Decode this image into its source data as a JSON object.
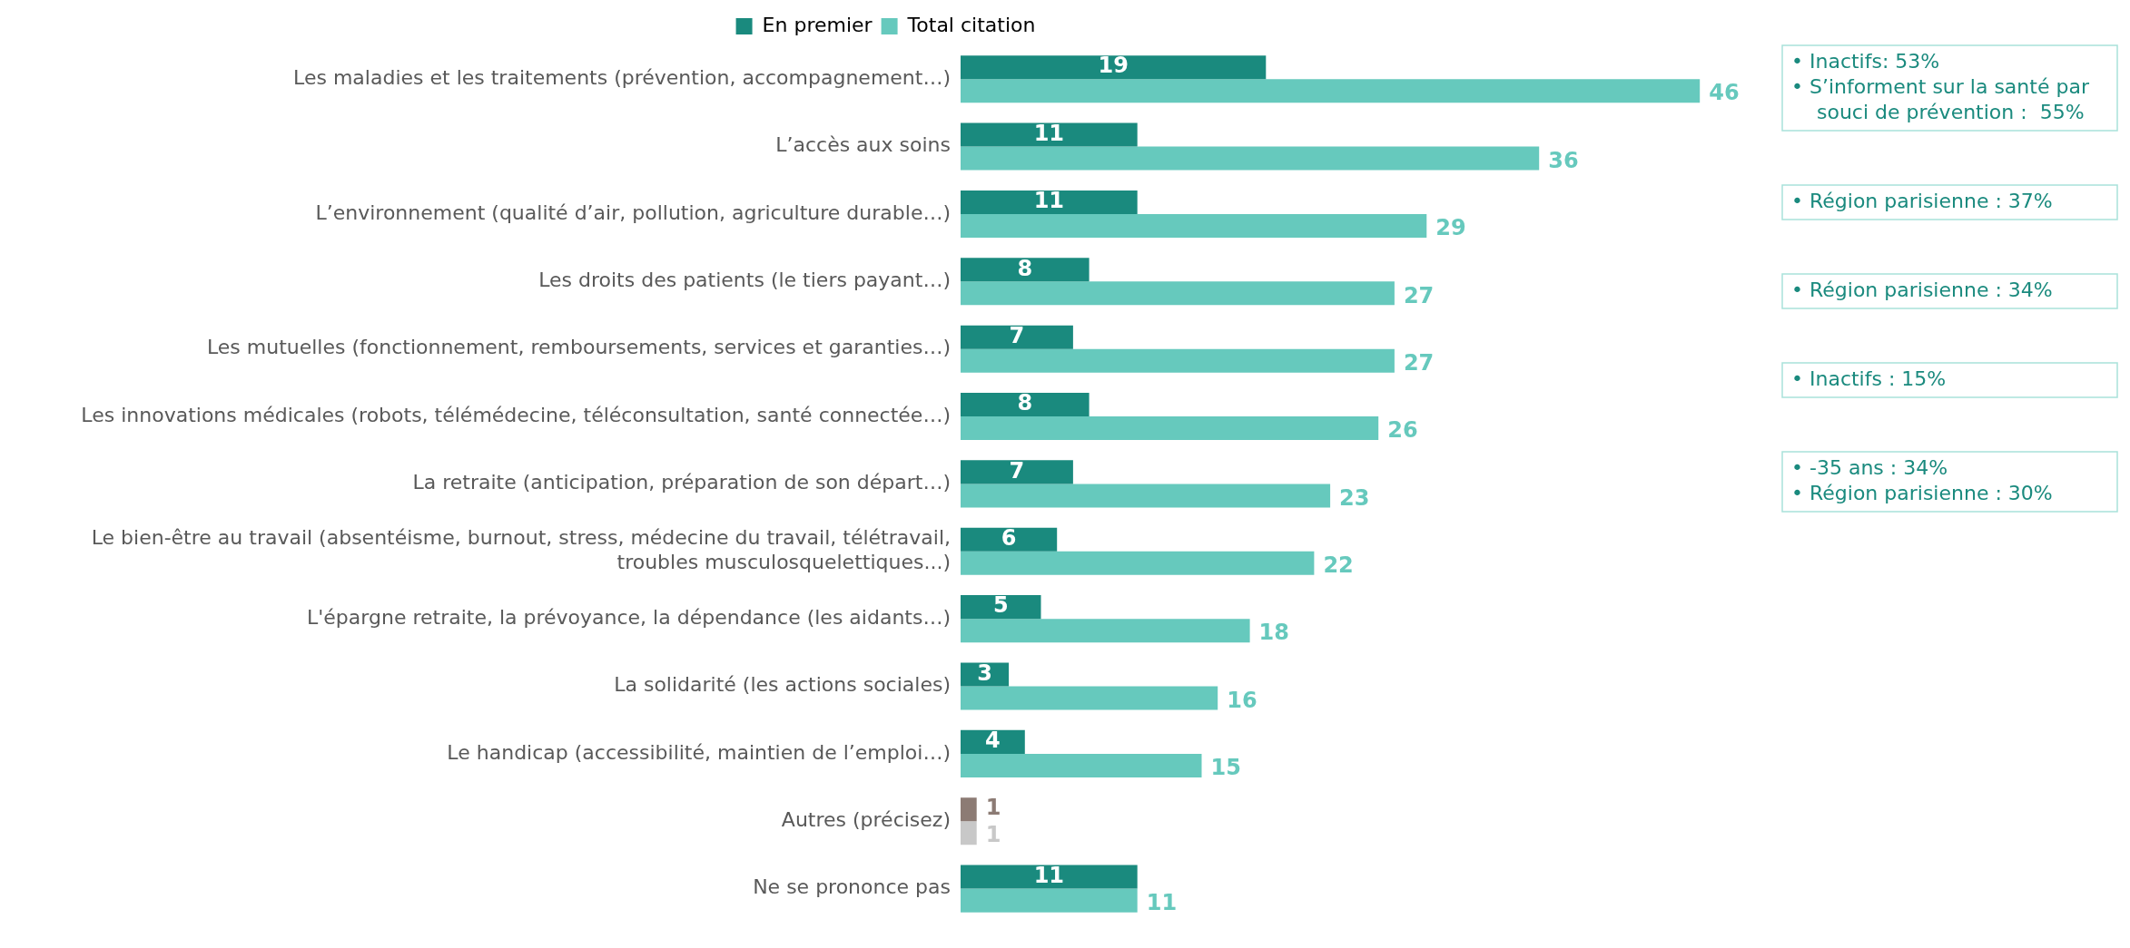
{
  "chart_data": {
    "type": "bar",
    "orientation": "horizontal",
    "legend": "top",
    "data_labels": true,
    "categories": [
      "Les maladies et les traitements (prévention, accompagnement…)",
      "L’accès aux soins",
      "L’environnement (qualité d’air, pollution, agriculture durable…)",
      "Les droits des patients (le tiers payant…)",
      "Les mutuelles (fonctionnement, remboursements, services et garanties…)",
      "Les innovations médicales (robots, télémédecine, téléconsultation, santé connectée…)",
      "La retraite (anticipation, préparation de son départ…)",
      "Le bien-être au travail (absentéisme, burnout, stress, médecine du travail, télétravail, troubles musculosquelettiques...)",
      "L'épargne retraite, la prévoyance, la dépendance (les aidants…)",
      "La solidarité (les actions sociales)",
      "Le handicap (accessibilité, maintien de l’emploi…)",
      "Autres (précisez)",
      "Ne se prononce pas"
    ],
    "series": [
      {
        "name": "En premier",
        "color": "#1a8a7e",
        "colors": [
          "#1a8a7e",
          "#1a8a7e",
          "#1a8a7e",
          "#1a8a7e",
          "#1a8a7e",
          "#1a8a7e",
          "#1a8a7e",
          "#1a8a7e",
          "#1a8a7e",
          "#1a8a7e",
          "#1a8a7e",
          "#8c7b74",
          "#1a8a7e"
        ],
        "values": [
          19,
          11,
          11,
          8,
          7,
          8,
          7,
          6,
          5,
          3,
          4,
          1,
          11
        ]
      },
      {
        "name": "Total citation",
        "color": "#66c9bd",
        "colors": [
          "#66c9bd",
          "#66c9bd",
          "#66c9bd",
          "#66c9bd",
          "#66c9bd",
          "#66c9bd",
          "#66c9bd",
          "#66c9bd",
          "#66c9bd",
          "#66c9bd",
          "#66c9bd",
          "#c8c8c8",
          "#66c9bd"
        ],
        "values": [
          46,
          36,
          29,
          27,
          27,
          26,
          23,
          22,
          18,
          16,
          15,
          1,
          11
        ]
      }
    ],
    "annotations": [
      "• Inactifs: 53%\n• S’informent sur la santé par souci de prévention :  55%",
      "• Région parisienne : 37%",
      "• Région parisienne : 34%",
      "• Inactifs : 15%",
      "• -35 ans : 34%\n• Région parisienne : 30%"
    ]
  }
}
